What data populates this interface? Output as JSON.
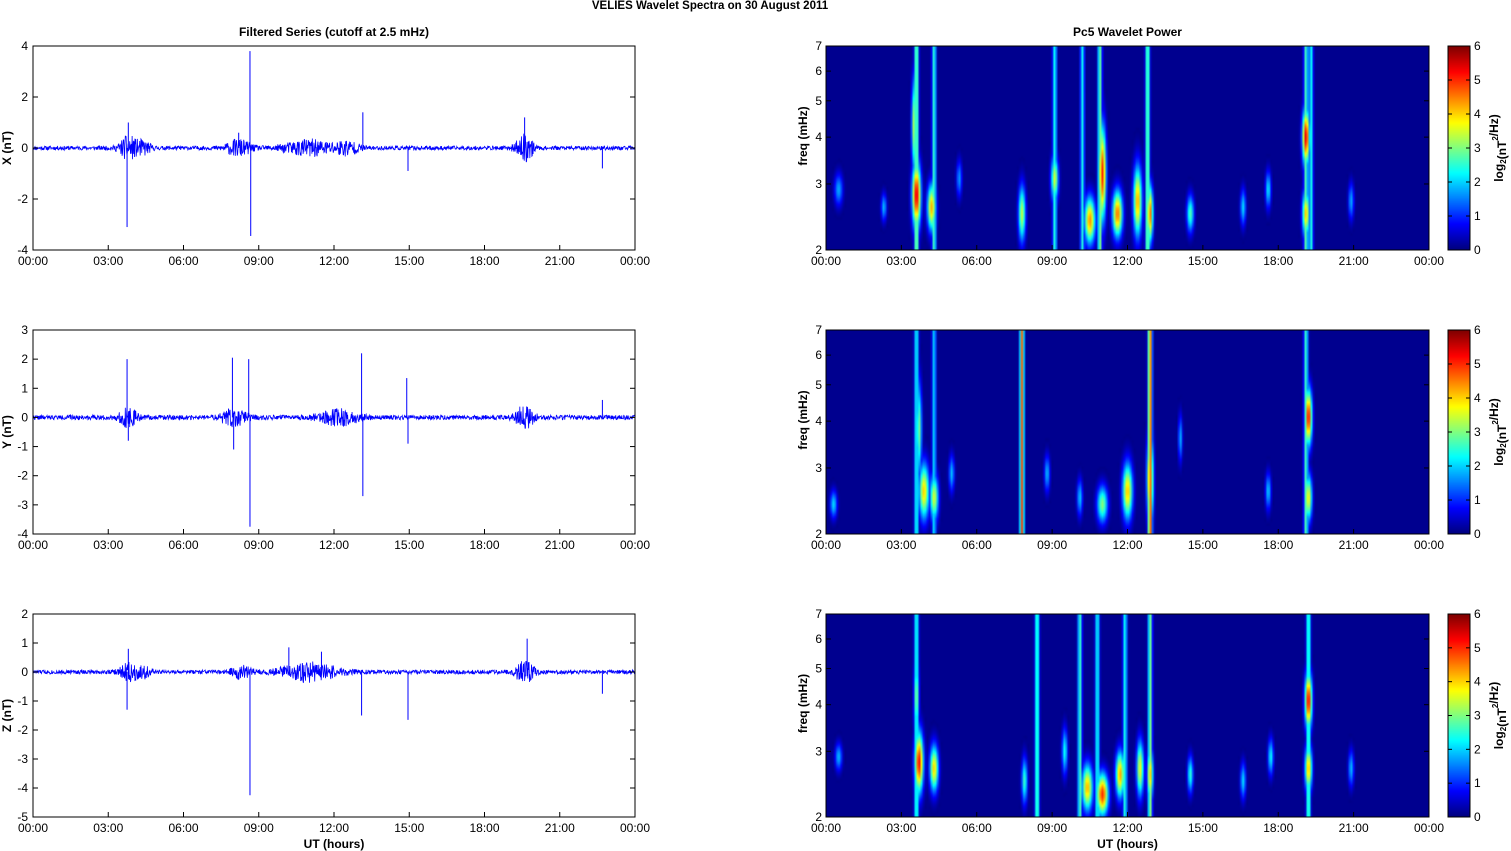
{
  "figure": {
    "title": "VELIES Wavelet Spectra on 30 August    2011"
  },
  "colors": {
    "series": "#0000ff",
    "axis": "#000000",
    "background": "#ffffff",
    "heatmap_bg": "#00008f"
  },
  "colormap": "jet",
  "chart_data": [
    {
      "type": "line",
      "id": "x-series",
      "title": "Filtered Series (cutoff at 2.5 mHz)",
      "xlabel": "",
      "ylabel": "X (nT)",
      "xlim": [
        0,
        24
      ],
      "ylim": [
        -4,
        4
      ],
      "yticks": [
        -4,
        -2,
        0,
        2,
        4
      ],
      "xticks": [
        "00:00",
        "03:00",
        "06:00",
        "09:00",
        "12:00",
        "15:00",
        "18:00",
        "21:00",
        "00:00"
      ],
      "noise_level": 0.08,
      "bursts": [
        {
          "t": 3.8,
          "w": 0.35,
          "a": 0.45
        },
        {
          "t": 4.4,
          "w": 0.3,
          "a": 0.25
        },
        {
          "t": 8.2,
          "w": 0.5,
          "a": 0.3
        },
        {
          "t": 11.0,
          "w": 1.0,
          "a": 0.3
        },
        {
          "t": 12.5,
          "w": 0.5,
          "a": 0.25
        },
        {
          "t": 19.6,
          "w": 0.35,
          "a": 0.5
        }
      ],
      "spikes": [
        {
          "t": 3.75,
          "y": -3.1
        },
        {
          "t": 3.8,
          "y": 1.0
        },
        {
          "t": 8.2,
          "y": 0.6
        },
        {
          "t": 8.65,
          "y": 3.8
        },
        {
          "t": 8.68,
          "y": -3.45
        },
        {
          "t": 13.15,
          "y": 1.4
        },
        {
          "t": 14.95,
          "y": -0.9
        },
        {
          "t": 19.6,
          "y": 1.2
        },
        {
          "t": 22.7,
          "y": -0.8
        }
      ]
    },
    {
      "type": "heatmap",
      "id": "x-power",
      "title": "Pc5 Wavelet Power",
      "xlabel": "",
      "ylabel": "freq (mHz)",
      "xlim": [
        0,
        24
      ],
      "ylim": [
        2,
        7
      ],
      "yscale": "log",
      "yticks": [
        2,
        3,
        4,
        5,
        6,
        7
      ],
      "xticks": [
        "00:00",
        "03:00",
        "06:00",
        "09:00",
        "12:00",
        "15:00",
        "18:00",
        "21:00",
        "00:00"
      ],
      "colorbar": {
        "label": "log2(nT2/Hz)",
        "range": [
          0,
          6
        ],
        "ticks": [
          0,
          1,
          2,
          3,
          4,
          5,
          6
        ]
      },
      "blobs": [
        {
          "t": 3.6,
          "f": 2.8,
          "st": 0.12,
          "sf": 0.14,
          "v": 5.6
        },
        {
          "t": 4.2,
          "f": 2.6,
          "st": 0.12,
          "sf": 0.1,
          "v": 4.3
        },
        {
          "t": 3.5,
          "f": 4.3,
          "st": 0.07,
          "sf": 0.2,
          "v": 3.4
        },
        {
          "t": 7.8,
          "f": 2.5,
          "st": 0.1,
          "sf": 0.12,
          "v": 3.5
        },
        {
          "t": 9.1,
          "f": 3.1,
          "st": 0.1,
          "sf": 0.1,
          "v": 3.6
        },
        {
          "t": 10.5,
          "f": 2.4,
          "st": 0.15,
          "sf": 0.1,
          "v": 4.5
        },
        {
          "t": 11.0,
          "f": 3.2,
          "st": 0.1,
          "sf": 0.2,
          "v": 5.2
        },
        {
          "t": 11.6,
          "f": 2.5,
          "st": 0.14,
          "sf": 0.1,
          "v": 4.7
        },
        {
          "t": 12.4,
          "f": 2.7,
          "st": 0.12,
          "sf": 0.15,
          "v": 4.4
        },
        {
          "t": 12.9,
          "f": 2.5,
          "st": 0.08,
          "sf": 0.12,
          "v": 4.8
        },
        {
          "t": 14.5,
          "f": 2.5,
          "st": 0.1,
          "sf": 0.08,
          "v": 2.8
        },
        {
          "t": 19.1,
          "f": 4.0,
          "st": 0.1,
          "sf": 0.12,
          "v": 5.6
        },
        {
          "t": 19.1,
          "f": 2.5,
          "st": 0.1,
          "sf": 0.1,
          "v": 4.2
        },
        {
          "t": 0.5,
          "f": 2.9,
          "st": 0.12,
          "sf": 0.07,
          "v": 1.8
        },
        {
          "t": 2.3,
          "f": 2.6,
          "st": 0.08,
          "sf": 0.06,
          "v": 1.9
        },
        {
          "t": 5.3,
          "f": 3.1,
          "st": 0.08,
          "sf": 0.08,
          "v": 1.7
        },
        {
          "t": 16.6,
          "f": 2.6,
          "st": 0.08,
          "sf": 0.08,
          "v": 2.1
        },
        {
          "t": 17.6,
          "f": 2.9,
          "st": 0.08,
          "sf": 0.08,
          "v": 2.2
        },
        {
          "t": 20.9,
          "f": 2.7,
          "st": 0.08,
          "sf": 0.08,
          "v": 1.8
        }
      ],
      "streaks": [
        {
          "t": 3.6,
          "v": 3.4
        },
        {
          "t": 4.3,
          "v": 2.8
        },
        {
          "t": 9.1,
          "v": 2.6
        },
        {
          "t": 10.2,
          "v": 2.5
        },
        {
          "t": 10.9,
          "v": 3.2
        },
        {
          "t": 12.8,
          "v": 3.3
        },
        {
          "t": 19.1,
          "v": 3.0
        },
        {
          "t": 19.3,
          "v": 2.6
        }
      ]
    },
    {
      "type": "line",
      "id": "y-series",
      "title": "",
      "xlabel": "",
      "ylabel": "Y (nT)",
      "xlim": [
        0,
        24
      ],
      "ylim": [
        -4,
        3
      ],
      "yticks": [
        -4,
        -3,
        -2,
        -1,
        0,
        1,
        2,
        3
      ],
      "xticks": [
        "00:00",
        "03:00",
        "06:00",
        "09:00",
        "12:00",
        "15:00",
        "18:00",
        "21:00",
        "00:00"
      ],
      "noise_level": 0.08,
      "bursts": [
        {
          "t": 3.8,
          "w": 0.35,
          "a": 0.3
        },
        {
          "t": 8.0,
          "w": 0.5,
          "a": 0.3
        },
        {
          "t": 12.2,
          "w": 0.8,
          "a": 0.25
        },
        {
          "t": 19.6,
          "w": 0.35,
          "a": 0.4
        }
      ],
      "spikes": [
        {
          "t": 3.75,
          "y": 2.0
        },
        {
          "t": 3.8,
          "y": -0.8
        },
        {
          "t": 7.95,
          "y": 2.05
        },
        {
          "t": 8.0,
          "y": -1.1
        },
        {
          "t": 8.6,
          "y": 2.0
        },
        {
          "t": 8.65,
          "y": -3.75
        },
        {
          "t": 13.1,
          "y": 2.2
        },
        {
          "t": 13.15,
          "y": -2.7
        },
        {
          "t": 14.9,
          "y": 1.35
        },
        {
          "t": 14.95,
          "y": -0.9
        },
        {
          "t": 22.7,
          "y": 0.6
        }
      ]
    },
    {
      "type": "heatmap",
      "id": "y-power",
      "title": "",
      "xlabel": "",
      "ylabel": "freq (mHz)",
      "xlim": [
        0,
        24
      ],
      "ylim": [
        2,
        7
      ],
      "yscale": "log",
      "yticks": [
        2,
        3,
        4,
        5,
        6,
        7
      ],
      "xticks": [
        "00:00",
        "03:00",
        "06:00",
        "09:00",
        "12:00",
        "15:00",
        "18:00",
        "21:00",
        "00:00"
      ],
      "colorbar": {
        "label": "log2(nT2/Hz)",
        "range": [
          0,
          6
        ],
        "ticks": [
          0,
          1,
          2,
          3,
          4,
          5,
          6
        ]
      },
      "blobs": [
        {
          "t": 3.9,
          "f": 2.6,
          "st": 0.14,
          "sf": 0.12,
          "v": 4.1
        },
        {
          "t": 3.7,
          "f": 3.8,
          "st": 0.08,
          "sf": 0.2,
          "v": 3.1
        },
        {
          "t": 4.3,
          "f": 2.5,
          "st": 0.12,
          "sf": 0.1,
          "v": 3.6
        },
        {
          "t": 7.8,
          "f": 2.6,
          "st": 0.06,
          "sf": 0.3,
          "v": 4.6
        },
        {
          "t": 11.0,
          "f": 2.4,
          "st": 0.15,
          "sf": 0.08,
          "v": 3.1
        },
        {
          "t": 12.0,
          "f": 2.6,
          "st": 0.14,
          "sf": 0.12,
          "v": 4.2
        },
        {
          "t": 12.9,
          "f": 2.8,
          "st": 0.09,
          "sf": 0.2,
          "v": 4.7
        },
        {
          "t": 19.2,
          "f": 4.1,
          "st": 0.1,
          "sf": 0.12,
          "v": 5.4
        },
        {
          "t": 19.2,
          "f": 2.5,
          "st": 0.1,
          "sf": 0.1,
          "v": 3.9
        },
        {
          "t": 0.3,
          "f": 2.4,
          "st": 0.1,
          "sf": 0.06,
          "v": 2.1
        },
        {
          "t": 5.0,
          "f": 2.9,
          "st": 0.08,
          "sf": 0.08,
          "v": 1.9
        },
        {
          "t": 8.8,
          "f": 2.9,
          "st": 0.08,
          "sf": 0.08,
          "v": 1.9
        },
        {
          "t": 10.1,
          "f": 2.5,
          "st": 0.08,
          "sf": 0.08,
          "v": 2.0
        },
        {
          "t": 14.1,
          "f": 3.6,
          "st": 0.06,
          "sf": 0.1,
          "v": 1.9
        },
        {
          "t": 17.6,
          "f": 2.6,
          "st": 0.08,
          "sf": 0.08,
          "v": 2.0
        }
      ],
      "streaks": [
        {
          "t": 7.8,
          "v": 5.0
        },
        {
          "t": 12.9,
          "v": 5.0
        },
        {
          "t": 3.6,
          "v": 2.6
        },
        {
          "t": 19.1,
          "v": 2.9
        },
        {
          "t": 4.3,
          "v": 2.2
        }
      ]
    },
    {
      "type": "line",
      "id": "z-series",
      "title": "",
      "xlabel": "UT (hours)",
      "ylabel": "Z (nT)",
      "xlim": [
        0,
        24
      ],
      "ylim": [
        -5,
        2
      ],
      "yticks": [
        -5,
        -4,
        -3,
        -2,
        -1,
        0,
        1,
        2
      ],
      "xticks": [
        "00:00",
        "03:00",
        "06:00",
        "09:00",
        "12:00",
        "15:00",
        "18:00",
        "21:00",
        "00:00"
      ],
      "noise_level": 0.07,
      "bursts": [
        {
          "t": 3.8,
          "w": 0.35,
          "a": 0.3
        },
        {
          "t": 4.4,
          "w": 0.3,
          "a": 0.2
        },
        {
          "t": 8.3,
          "w": 0.4,
          "a": 0.2
        },
        {
          "t": 11.0,
          "w": 1.2,
          "a": 0.3
        },
        {
          "t": 19.6,
          "w": 0.35,
          "a": 0.4
        }
      ],
      "spikes": [
        {
          "t": 3.75,
          "y": -1.3
        },
        {
          "t": 3.8,
          "y": 0.8
        },
        {
          "t": 8.65,
          "y": -4.25
        },
        {
          "t": 10.2,
          "y": 0.85
        },
        {
          "t": 11.5,
          "y": 0.7
        },
        {
          "t": 13.1,
          "y": -1.5
        },
        {
          "t": 14.95,
          "y": -1.65
        },
        {
          "t": 19.7,
          "y": 1.15
        },
        {
          "t": 22.7,
          "y": -0.75
        }
      ]
    },
    {
      "type": "heatmap",
      "id": "z-power",
      "title": "",
      "xlabel": "UT (hours)",
      "ylabel": "freq (mHz)",
      "xlim": [
        0,
        24
      ],
      "ylim": [
        2,
        7
      ],
      "yscale": "log",
      "yticks": [
        2,
        3,
        4,
        5,
        6,
        7
      ],
      "xticks": [
        "00:00",
        "03:00",
        "06:00",
        "09:00",
        "12:00",
        "15:00",
        "18:00",
        "21:00",
        "00:00"
      ],
      "colorbar": {
        "label": "log2(nT2/Hz)",
        "range": [
          0,
          6
        ],
        "ticks": [
          0,
          1,
          2,
          3,
          4,
          5,
          6
        ]
      },
      "blobs": [
        {
          "t": 3.7,
          "f": 2.8,
          "st": 0.12,
          "sf": 0.13,
          "v": 5.4
        },
        {
          "t": 4.3,
          "f": 2.7,
          "st": 0.12,
          "sf": 0.1,
          "v": 4.1
        },
        {
          "t": 3.6,
          "f": 4.2,
          "st": 0.07,
          "sf": 0.18,
          "v": 3.2
        },
        {
          "t": 10.4,
          "f": 2.4,
          "st": 0.15,
          "sf": 0.1,
          "v": 4.3
        },
        {
          "t": 11.0,
          "f": 2.3,
          "st": 0.16,
          "sf": 0.09,
          "v": 5.1
        },
        {
          "t": 11.7,
          "f": 2.6,
          "st": 0.12,
          "sf": 0.1,
          "v": 4.4
        },
        {
          "t": 12.5,
          "f": 2.7,
          "st": 0.1,
          "sf": 0.12,
          "v": 3.8
        },
        {
          "t": 12.9,
          "f": 2.6,
          "st": 0.08,
          "sf": 0.12,
          "v": 4.2
        },
        {
          "t": 19.2,
          "f": 4.1,
          "st": 0.1,
          "sf": 0.12,
          "v": 5.5
        },
        {
          "t": 19.2,
          "f": 2.7,
          "st": 0.1,
          "sf": 0.1,
          "v": 4.3
        },
        {
          "t": 0.5,
          "f": 2.9,
          "st": 0.1,
          "sf": 0.06,
          "v": 1.9
        },
        {
          "t": 7.9,
          "f": 2.5,
          "st": 0.08,
          "sf": 0.1,
          "v": 2.7
        },
        {
          "t": 9.5,
          "f": 3.0,
          "st": 0.08,
          "sf": 0.1,
          "v": 2.4
        },
        {
          "t": 14.5,
          "f": 2.6,
          "st": 0.08,
          "sf": 0.08,
          "v": 2.6
        },
        {
          "t": 16.6,
          "f": 2.5,
          "st": 0.08,
          "sf": 0.08,
          "v": 2.1
        },
        {
          "t": 17.7,
          "f": 2.9,
          "st": 0.08,
          "sf": 0.08,
          "v": 2.3
        },
        {
          "t": 20.9,
          "f": 2.7,
          "st": 0.08,
          "sf": 0.08,
          "v": 1.9
        }
      ],
      "streaks": [
        {
          "t": 8.4,
          "v": 3.0
        },
        {
          "t": 10.1,
          "v": 2.9
        },
        {
          "t": 10.8,
          "v": 2.6
        },
        {
          "t": 11.9,
          "v": 2.6
        },
        {
          "t": 12.9,
          "v": 3.3
        },
        {
          "t": 3.6,
          "v": 2.8
        },
        {
          "t": 19.2,
          "v": 3.0
        }
      ]
    }
  ]
}
